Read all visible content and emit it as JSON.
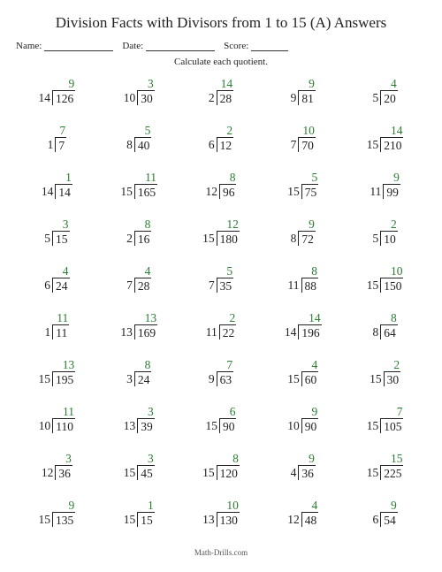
{
  "title": "Division Facts with Divisors from 1 to 15 (A) Answers",
  "labels": {
    "name": "Name:",
    "date": "Date:",
    "score": "Score:"
  },
  "underline_widths": {
    "name": 78,
    "date": 78,
    "score": 42
  },
  "instruction": "Calculate each quotient.",
  "footer": "Math-Drills.com",
  "quotient_color": "#2a7d32",
  "problems": [
    {
      "d": 14,
      "n": 126,
      "q": 9
    },
    {
      "d": 10,
      "n": 30,
      "q": 3
    },
    {
      "d": 2,
      "n": 28,
      "q": 14
    },
    {
      "d": 9,
      "n": 81,
      "q": 9
    },
    {
      "d": 5,
      "n": 20,
      "q": 4
    },
    {
      "d": 1,
      "n": 7,
      "q": 7
    },
    {
      "d": 8,
      "n": 40,
      "q": 5
    },
    {
      "d": 6,
      "n": 12,
      "q": 2
    },
    {
      "d": 7,
      "n": 70,
      "q": 10
    },
    {
      "d": 15,
      "n": 210,
      "q": 14
    },
    {
      "d": 14,
      "n": 14,
      "q": 1
    },
    {
      "d": 15,
      "n": 165,
      "q": 11
    },
    {
      "d": 12,
      "n": 96,
      "q": 8
    },
    {
      "d": 15,
      "n": 75,
      "q": 5
    },
    {
      "d": 11,
      "n": 99,
      "q": 9
    },
    {
      "d": 5,
      "n": 15,
      "q": 3
    },
    {
      "d": 2,
      "n": 16,
      "q": 8
    },
    {
      "d": 15,
      "n": 180,
      "q": 12
    },
    {
      "d": 8,
      "n": 72,
      "q": 9
    },
    {
      "d": 5,
      "n": 10,
      "q": 2
    },
    {
      "d": 6,
      "n": 24,
      "q": 4
    },
    {
      "d": 7,
      "n": 28,
      "q": 4
    },
    {
      "d": 7,
      "n": 35,
      "q": 5
    },
    {
      "d": 11,
      "n": 88,
      "q": 8
    },
    {
      "d": 15,
      "n": 150,
      "q": 10
    },
    {
      "d": 1,
      "n": 11,
      "q": 11
    },
    {
      "d": 13,
      "n": 169,
      "q": 13
    },
    {
      "d": 11,
      "n": 22,
      "q": 2
    },
    {
      "d": 14,
      "n": 196,
      "q": 14
    },
    {
      "d": 8,
      "n": 64,
      "q": 8
    },
    {
      "d": 15,
      "n": 195,
      "q": 13
    },
    {
      "d": 3,
      "n": 24,
      "q": 8
    },
    {
      "d": 9,
      "n": 63,
      "q": 7
    },
    {
      "d": 15,
      "n": 60,
      "q": 4
    },
    {
      "d": 15,
      "n": 30,
      "q": 2
    },
    {
      "d": 10,
      "n": 110,
      "q": 11
    },
    {
      "d": 13,
      "n": 39,
      "q": 3
    },
    {
      "d": 15,
      "n": 90,
      "q": 6
    },
    {
      "d": 10,
      "n": 90,
      "q": 9
    },
    {
      "d": 15,
      "n": 105,
      "q": 7
    },
    {
      "d": 12,
      "n": 36,
      "q": 3
    },
    {
      "d": 15,
      "n": 45,
      "q": 3
    },
    {
      "d": 15,
      "n": 120,
      "q": 8
    },
    {
      "d": 4,
      "n": 36,
      "q": 9
    },
    {
      "d": 15,
      "n": 225,
      "q": 15
    },
    {
      "d": 15,
      "n": 135,
      "q": 9
    },
    {
      "d": 15,
      "n": 15,
      "q": 1
    },
    {
      "d": 13,
      "n": 130,
      "q": 10
    },
    {
      "d": 12,
      "n": 48,
      "q": 4
    },
    {
      "d": 6,
      "n": 54,
      "q": 9
    }
  ]
}
